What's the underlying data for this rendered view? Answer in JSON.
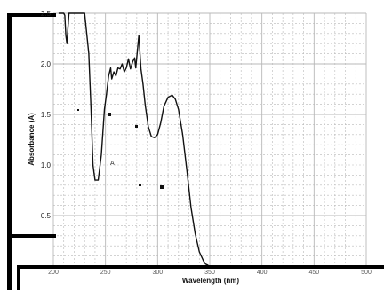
{
  "chart_data": {
    "type": "line",
    "title": "",
    "xlabel": "Wavelength (nm)",
    "ylabel": "Absorbance (A)",
    "xlim": [
      200,
      500
    ],
    "ylim": [
      0,
      2.5
    ],
    "x_ticks": [
      "200",
      "250",
      "300",
      "350",
      "400",
      "450",
      "500"
    ],
    "y_ticks": [
      "0.5",
      "1.0",
      "1.5",
      "2.0",
      "2.5"
    ],
    "grid": true,
    "legend": "none",
    "annotations": [
      "A"
    ],
    "series": [
      {
        "color": "#111111",
        "x": [
          205,
          210,
          211,
          212,
          213,
          214,
          215,
          216,
          217,
          218,
          219,
          220,
          225,
          230,
          234,
          236,
          238,
          240,
          243,
          246,
          249,
          251,
          253,
          255,
          256,
          258,
          260,
          262,
          264,
          266,
          268,
          270,
          272,
          274,
          276,
          278,
          279,
          280,
          282,
          284,
          286,
          288,
          291,
          294,
          297,
          300,
          303,
          306,
          310,
          314,
          317,
          320,
          324,
          328,
          332,
          336,
          340,
          344,
          346,
          348,
          349,
          350,
          355,
          360,
          370,
          380,
          400,
          420,
          450,
          480,
          500
        ],
        "y": [
          2.5,
          2.5,
          2.48,
          2.28,
          2.2,
          2.35,
          2.5,
          2.5,
          2.5,
          2.5,
          2.5,
          2.5,
          2.5,
          2.5,
          2.1,
          1.6,
          1.0,
          0.85,
          0.85,
          1.1,
          1.55,
          1.7,
          1.88,
          1.96,
          1.85,
          1.92,
          1.88,
          1.96,
          1.95,
          2.0,
          1.92,
          1.96,
          2.05,
          1.95,
          2.02,
          2.06,
          1.96,
          2.07,
          2.28,
          1.95,
          1.8,
          1.6,
          1.38,
          1.28,
          1.27,
          1.3,
          1.42,
          1.58,
          1.67,
          1.69,
          1.65,
          1.55,
          1.3,
          0.95,
          0.58,
          0.32,
          0.14,
          0.05,
          0.02,
          0.01,
          0.0,
          0.0,
          0.0,
          0.0,
          0.0,
          0.0,
          0.0,
          0.0,
          0.0,
          0.0,
          0.0
        ]
      }
    ]
  },
  "colors": {
    "grid": "#b8b8b8",
    "frame": "#000000",
    "line": "#111111"
  }
}
